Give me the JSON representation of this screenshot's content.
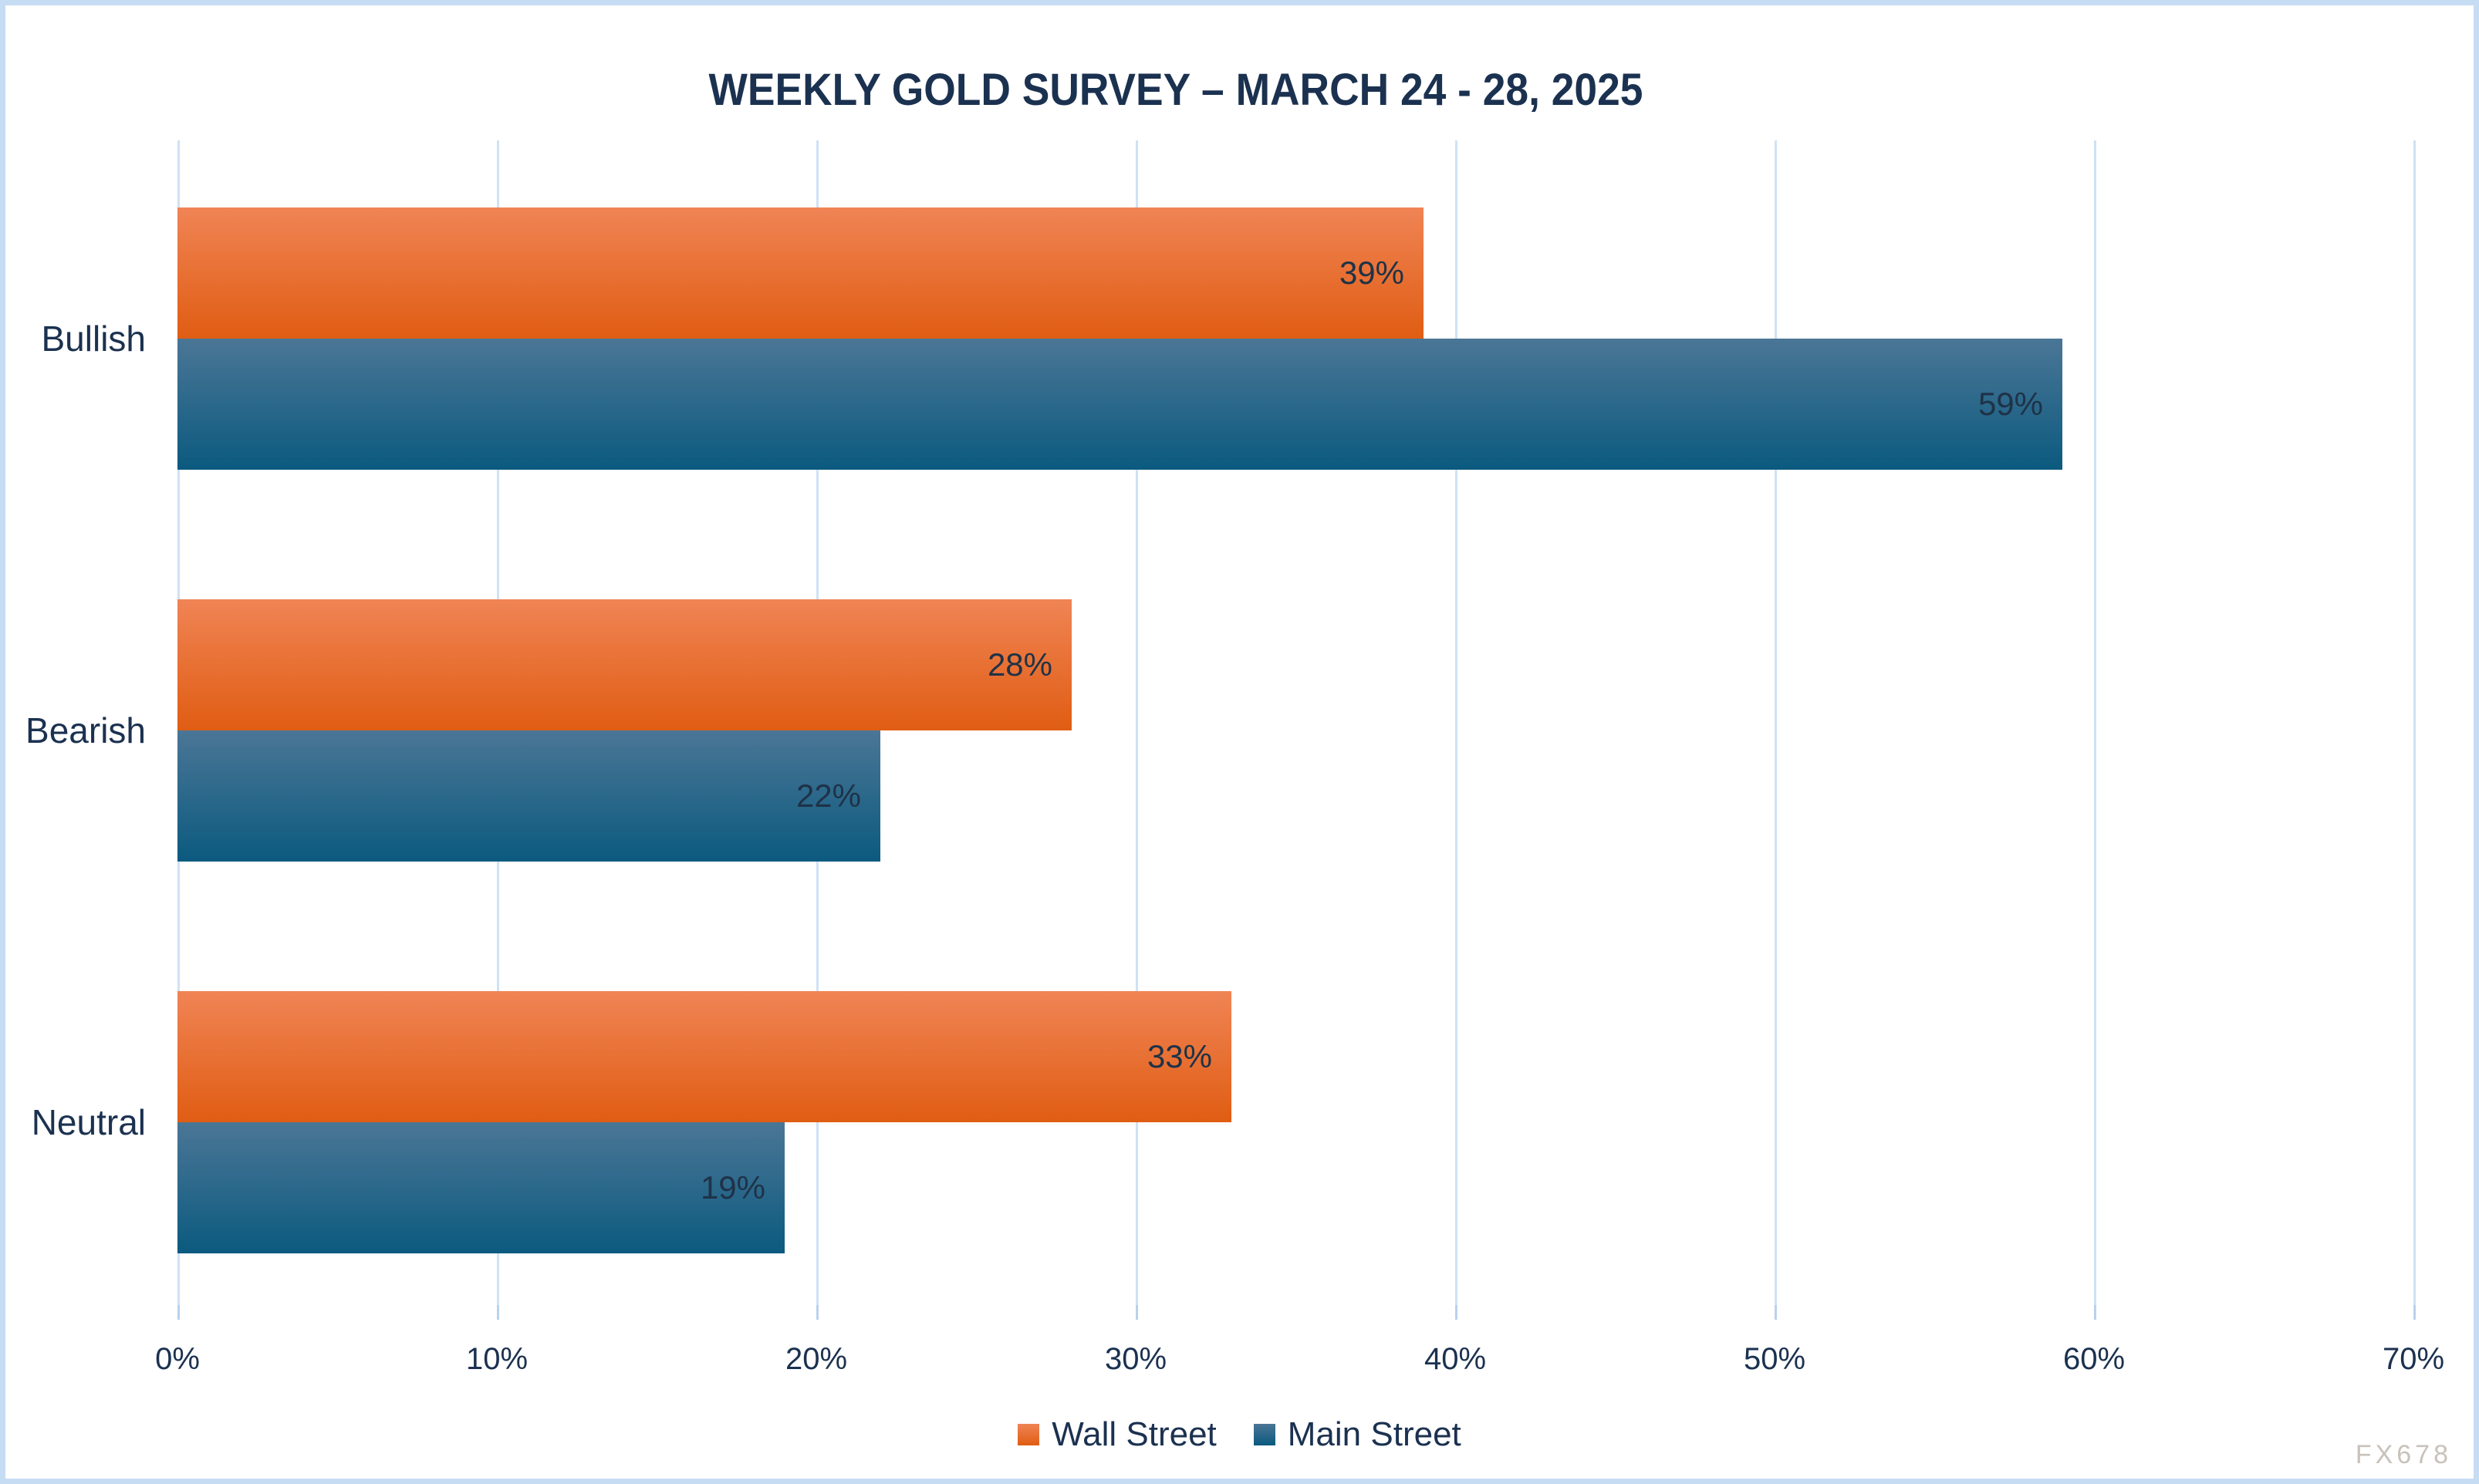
{
  "watermark": "FX678",
  "colors": {
    "text": "#1b3150",
    "data_label": "#1f3247",
    "gridline": "#cfe2f4",
    "tick": "#b8d2ee",
    "page_border": "#c5dcf3",
    "background": "#ffffff",
    "watermark": "#c8c2ba",
    "wall_street_gradient_top": "#f08455",
    "wall_street_gradient_bottom": "#e05d13",
    "main_street_gradient_top": "#4b7696",
    "main_street_gradient_bottom": "#0b5a7f"
  },
  "chart_data": {
    "type": "bar",
    "orientation": "horizontal",
    "title": "WEEKLY GOLD SURVEY – MARCH 24 - 28, 2025",
    "categories": [
      "Bullish",
      "Bearish",
      "Neutral"
    ],
    "series": [
      {
        "name": "Wall Street",
        "values": [
          39,
          28,
          33
        ]
      },
      {
        "name": "Main Street",
        "values": [
          59,
          22,
          19
        ]
      }
    ],
    "value_suffix": "%",
    "xlim": [
      0,
      70
    ],
    "x_tick_labels": [
      "0%",
      "10%",
      "20%",
      "30%",
      "40%",
      "50%",
      "60%",
      "70%"
    ],
    "grid": "vertical-gridlines",
    "data_labels": "inside-end",
    "legend_position": "bottom-center"
  }
}
